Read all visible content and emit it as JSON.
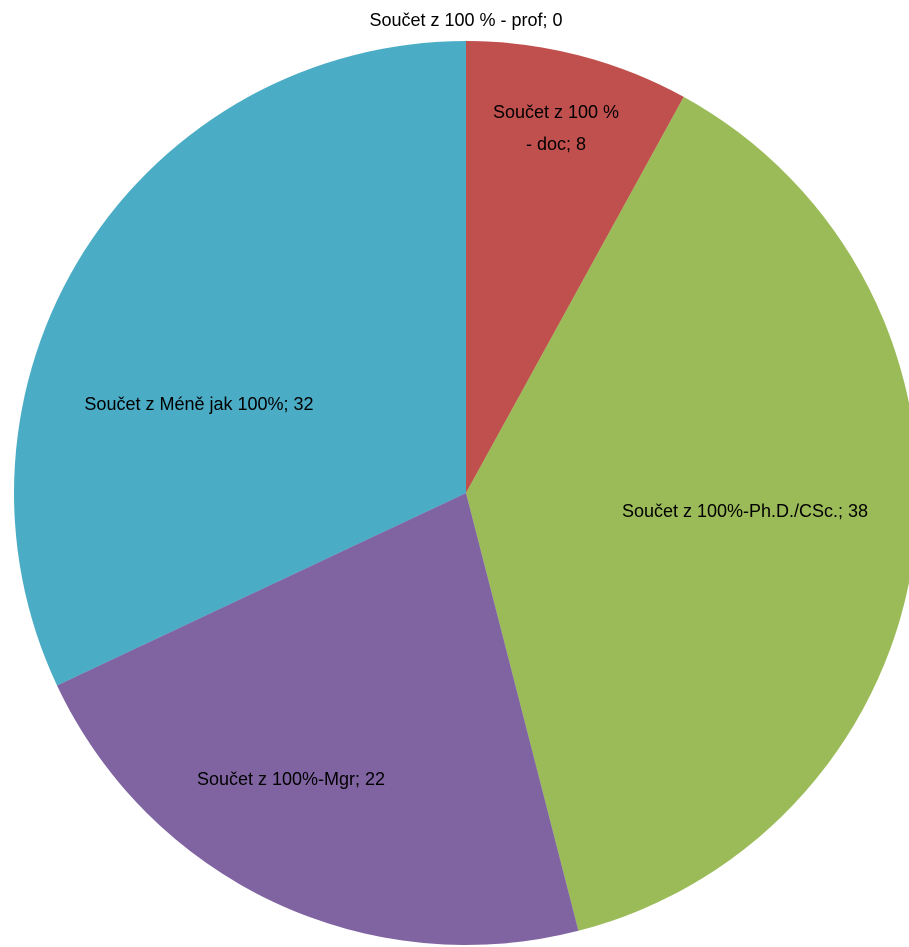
{
  "chart_data": {
    "type": "pie",
    "slices": [
      {
        "label": "Součet z 100 % - prof; 0",
        "value": 0,
        "color": "#4f81bd",
        "label_lines": [
          "Součet z 100 % - prof; 0"
        ]
      },
      {
        "label": "Součet z 100 % - doc; 8",
        "value": 8,
        "color": "#c0504d",
        "label_lines": [
          "Součet z 100 %",
          "- doc; 8"
        ]
      },
      {
        "label": "Součet z 100%-Ph.D./CSc.; 38",
        "value": 38,
        "color": "#9bbb59",
        "label_lines": [
          "Součet z 100%-Ph.D./CSc.; 38"
        ]
      },
      {
        "label": "Součet z 100%-Mgr; 22",
        "value": 22,
        "color": "#8064a2",
        "label_lines": [
          "Součet z 100%-Mgr; 22"
        ]
      },
      {
        "label": "Součet z Méně jak 100%; 32",
        "value": 32,
        "color": "#4bacc6",
        "label_lines": [
          "Součet z Méně jak 100%; 32"
        ]
      }
    ],
    "legend": "none",
    "start_angle": "12 o'clock",
    "direction": "clockwise"
  }
}
